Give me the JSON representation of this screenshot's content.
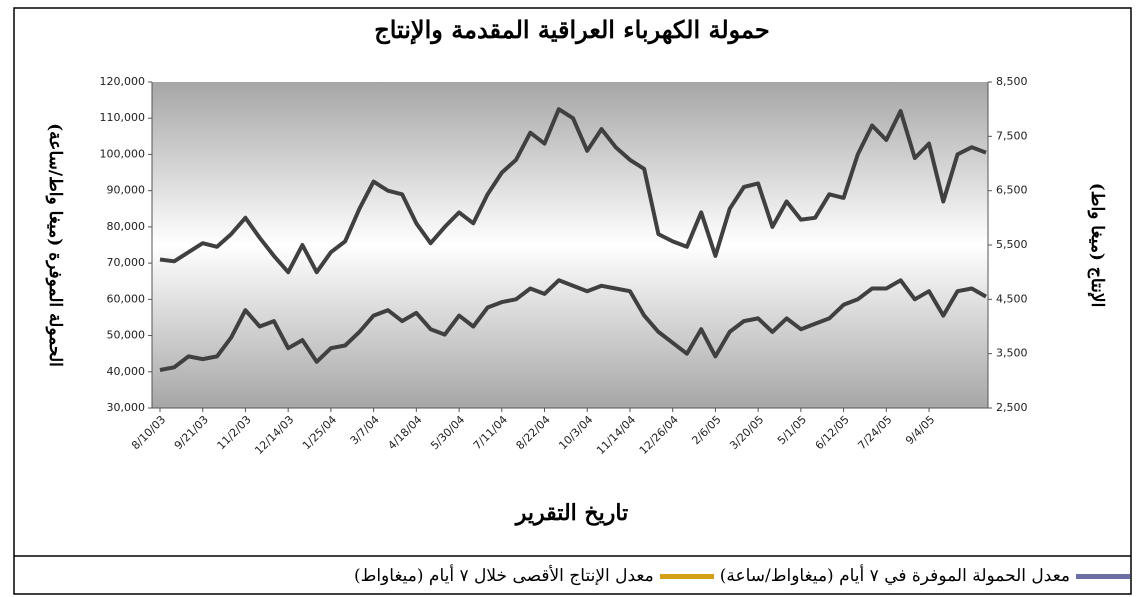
{
  "chart_data": {
    "type": "line",
    "title": "حمولة الكهرباء العراقية المقدمة والإنتاج",
    "x_label": "تاريخ التقرير",
    "y_label": "الحمولة الموفرة (ميغا واط/ساعة)",
    "y2_label": "الإنتاج (ميغا واط)",
    "categories": [
      "8/10/03",
      null,
      null,
      "9/21/03",
      null,
      null,
      "11/2/03",
      null,
      null,
      "12/14/03",
      null,
      null,
      "1/25/04",
      null,
      null,
      "3/7/04",
      null,
      null,
      "4/18/04",
      null,
      null,
      "5/30/04",
      null,
      null,
      "7/11/04",
      null,
      null,
      "8/22/04",
      null,
      null,
      "10/3/04",
      null,
      null,
      "11/14/04",
      null,
      null,
      "12/26/04",
      null,
      null,
      "2/6/05",
      null,
      null,
      "3/20/05",
      null,
      null,
      "5/1/05",
      null,
      null,
      "6/12/05",
      null,
      null,
      "7/24/05",
      null,
      null,
      "9/4/05",
      null,
      null,
      null,
      null
    ],
    "series": [
      {
        "name": "معدل الحمولة الموفرة في ٧ أيام (ميغاواط/ساعة)",
        "color": "#404040",
        "legend_color": "#6b6fa6",
        "values": [
          71000,
          70500,
          73000,
          75500,
          74500,
          78000,
          82500,
          77000,
          72000,
          67500,
          75000,
          67500,
          73000,
          76000,
          85000,
          92500,
          90000,
          89000,
          81000,
          75500,
          80000,
          84000,
          81000,
          89000,
          95000,
          98500,
          106000,
          103000,
          112500,
          110000,
          101000,
          107000,
          102000,
          98500,
          96000,
          78000,
          76000,
          74500,
          84000,
          72000,
          85000,
          91000,
          92000,
          80000,
          87000,
          82000,
          82500,
          89000,
          88000,
          100000,
          108000,
          104000,
          112000,
          99000,
          103000,
          87000,
          100000,
          102000,
          100500
        ]
      },
      {
        "name": "معدل الإنتاج الأقصى خلال ٧ أيام (ميغاواط)",
        "color": "#404040",
        "legend_color": "#d4a017",
        "axis": "y2",
        "values": [
          3200,
          3250,
          3450,
          3400,
          3450,
          3800,
          4300,
          4000,
          4100,
          3600,
          3750,
          3350,
          3600,
          3650,
          3900,
          4200,
          4300,
          4100,
          4250,
          3950,
          3850,
          4200,
          4000,
          4350,
          4450,
          4500,
          4700,
          4600,
          4850,
          4750,
          4650,
          4750,
          4700,
          4650,
          4200,
          3900,
          3700,
          3500,
          3950,
          3450,
          3900,
          4100,
          4150,
          3900,
          4150,
          3950,
          4050,
          4150,
          4400,
          4500,
          4700,
          4700,
          4850,
          4500,
          4650,
          4200,
          4650,
          4700,
          4550
        ]
      }
    ],
    "ylim": [
      30000,
      120000
    ],
    "yticks": [
      {
        "value": 30000,
        "label": "30,000"
      },
      {
        "value": 40000,
        "label": "40,000"
      },
      {
        "value": 50000,
        "label": "50,000"
      },
      {
        "value": 60000,
        "label": "60,000"
      },
      {
        "value": 70000,
        "label": "70,000"
      },
      {
        "value": 80000,
        "label": "80,000"
      },
      {
        "value": 90000,
        "label": "90,000"
      },
      {
        "value": 100000,
        "label": "100,000"
      },
      {
        "value": 110000,
        "label": "110,000"
      },
      {
        "value": 120000,
        "label": "120,000"
      }
    ],
    "y2lim": [
      2500,
      8500
    ],
    "y2ticks": [
      {
        "value": 2500,
        "label": "2,500"
      },
      {
        "value": 3500,
        "label": "3,500"
      },
      {
        "value": 4500,
        "label": "4,500"
      },
      {
        "value": 5500,
        "label": "5,500"
      },
      {
        "value": 6500,
        "label": "6,500"
      },
      {
        "value": 7500,
        "label": "7,500"
      },
      {
        "value": 8500,
        "label": "8,500"
      }
    ]
  }
}
